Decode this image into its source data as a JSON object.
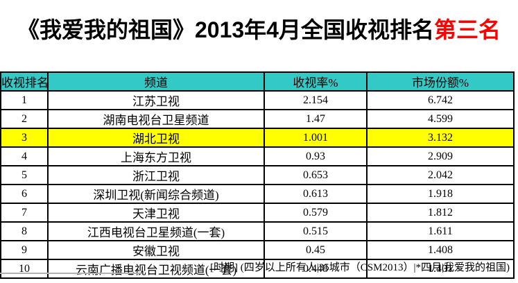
{
  "title": {
    "main": "《我爱我的祖国》2013年4月全国收视排名",
    "highlight": "第三名"
  },
  "colors": {
    "title_highlight": "#ff0000",
    "header_bg": "#33c9c6",
    "row_highlight": "#ffff00"
  },
  "chart_data": {
    "type": "table",
    "title": "《我爱我的祖国》2013年4月全国收视排名第三名",
    "columns": [
      "收视排名",
      "频道",
      "收视率%",
      "市场份额%"
    ],
    "rows": [
      [
        1,
        "江苏卫视",
        2.154,
        6.742
      ],
      [
        2,
        "湖南电视台卫星频道",
        1.47,
        4.599
      ],
      [
        3,
        "湖北卫视",
        1.001,
        3.132
      ],
      [
        4,
        "上海东方卫视",
        0.93,
        2.909
      ],
      [
        5,
        "浙江卫视",
        0.653,
        2.042
      ],
      [
        6,
        "深圳卫视(新闻综合频道)",
        0.613,
        1.918
      ],
      [
        7,
        "天津卫视",
        0.579,
        1.812
      ],
      [
        8,
        "江西电视台卫星频道(一套)",
        0.515,
        1.611
      ],
      [
        9,
        "安徽卫视",
        0.45,
        1.408
      ],
      [
        10,
        "云南广播电视台卫视频道(一套)",
        0.448,
        1.401
      ]
    ],
    "highlighted_rank": 3,
    "footnote": "[时期] (四岁以上所有人|35城市（CSM2013）|*四月|我爱我的祖国)"
  },
  "footer": {
    "note": "[时期] (四岁以上所有人|35城市（CSM2013）|*四月|我爱我的祖国)"
  }
}
